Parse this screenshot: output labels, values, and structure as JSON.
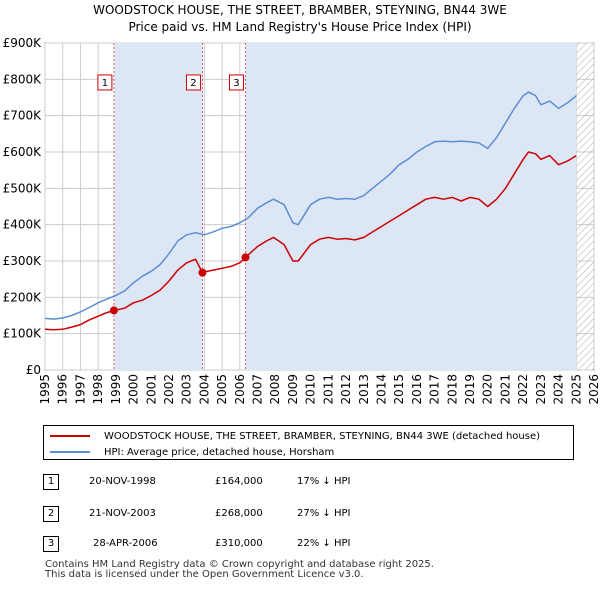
{
  "title_line1": "WOODSTOCK HOUSE, THE STREET, BRAMBER, STEYNING, BN44 3WE",
  "title_line2": "Price paid vs. HM Land Registry's House Price Index (HPI)",
  "colors": {
    "property": "#cc0000",
    "hpi": "#5b8fd4",
    "shade": "#dde6f5",
    "grid": "#cccccc",
    "hatch": "#aaaaaa"
  },
  "chart_data": {
    "type": "line",
    "xlim": [
      1995,
      2026
    ],
    "ylim": [
      0,
      900000
    ],
    "yticks": [
      0,
      100000,
      200000,
      300000,
      400000,
      500000,
      600000,
      700000,
      800000,
      900000
    ],
    "ytick_labels": [
      "£0",
      "£100K",
      "£200K",
      "£300K",
      "£400K",
      "£500K",
      "£600K",
      "£700K",
      "£800K",
      "£900K"
    ],
    "xticks": [
      1995,
      1996,
      1997,
      1998,
      1999,
      2000,
      2001,
      2002,
      2003,
      2004,
      2005,
      2006,
      2007,
      2008,
      2009,
      2010,
      2011,
      2012,
      2013,
      2014,
      2015,
      2016,
      2017,
      2018,
      2019,
      2020,
      2021,
      2022,
      2023,
      2024,
      2025,
      2026
    ],
    "xtick_labels": [
      "1995",
      "1996",
      "1997",
      "1998",
      "1999",
      "2000",
      "2001",
      "2002",
      "2003",
      "2004",
      "2005",
      "2006",
      "2007",
      "2008",
      "2009",
      "2010",
      "2011",
      "2012",
      "2013",
      "2014",
      "2015",
      "2016",
      "2017",
      "2018",
      "2019",
      "2020",
      "2021",
      "2022",
      "2023",
      "2024",
      "2025",
      "2026"
    ],
    "grid": true,
    "hatched_from": 2025.0,
    "series": [
      {
        "name": "WOODSTOCK HOUSE, THE STREET, BRAMBER, STEYNING, BN44 3WE (detached house)",
        "color": "#cc0000",
        "x": [
          1995.0,
          1995.5,
          1996.0,
          1996.5,
          1997.0,
          1997.5,
          1998.0,
          1998.5,
          1998.89,
          1999.5,
          2000.0,
          2000.5,
          2001.0,
          2001.5,
          2002.0,
          2002.5,
          2003.0,
          2003.5,
          2003.89,
          2004.0,
          2004.5,
          2005.0,
          2005.5,
          2006.0,
          2006.32,
          2007.0,
          2007.5,
          2007.9,
          2008.5,
          2009.0,
          2009.3,
          2010.0,
          2010.5,
          2011.0,
          2011.5,
          2012.0,
          2012.5,
          2013.0,
          2013.5,
          2014.0,
          2014.5,
          2015.0,
          2015.5,
          2016.0,
          2016.5,
          2017.0,
          2017.5,
          2018.0,
          2018.5,
          2019.0,
          2019.5,
          2020.0,
          2020.5,
          2021.0,
          2021.5,
          2022.0,
          2022.3,
          2022.7,
          2023.0,
          2023.5,
          2024.0,
          2024.5,
          2025.0
        ],
        "y": [
          112000,
          111000,
          112000,
          118000,
          125000,
          138000,
          148000,
          158000,
          164000,
          170000,
          185000,
          192000,
          205000,
          220000,
          245000,
          275000,
          295000,
          305000,
          268000,
          270000,
          275000,
          280000,
          285000,
          295000,
          310000,
          340000,
          355000,
          365000,
          345000,
          300000,
          300000,
          345000,
          360000,
          365000,
          360000,
          362000,
          358000,
          365000,
          380000,
          395000,
          410000,
          425000,
          440000,
          455000,
          470000,
          475000,
          470000,
          475000,
          465000,
          475000,
          470000,
          450000,
          470000,
          500000,
          540000,
          580000,
          600000,
          595000,
          580000,
          590000,
          565000,
          575000,
          590000
        ]
      },
      {
        "name": "HPI: Average price, detached house, Horsham",
        "color": "#5b8fd4",
        "x": [
          1995.0,
          1995.5,
          1996.0,
          1996.5,
          1997.0,
          1997.5,
          1998.0,
          1998.5,
          1999.0,
          1999.5,
          2000.0,
          2000.5,
          2001.0,
          2001.5,
          2002.0,
          2002.5,
          2003.0,
          2003.5,
          2004.0,
          2004.5,
          2005.0,
          2005.5,
          2006.0,
          2006.5,
          2007.0,
          2007.5,
          2007.9,
          2008.5,
          2009.0,
          2009.3,
          2010.0,
          2010.5,
          2011.0,
          2011.5,
          2012.0,
          2012.5,
          2013.0,
          2013.5,
          2014.0,
          2014.5,
          2015.0,
          2015.5,
          2016.0,
          2016.5,
          2017.0,
          2017.5,
          2018.0,
          2018.5,
          2019.0,
          2019.5,
          2020.0,
          2020.5,
          2021.0,
          2021.5,
          2022.0,
          2022.3,
          2022.7,
          2023.0,
          2023.5,
          2024.0,
          2024.5,
          2025.0
        ],
        "y": [
          142000,
          140000,
          143000,
          150000,
          160000,
          172000,
          185000,
          195000,
          205000,
          218000,
          240000,
          258000,
          272000,
          290000,
          320000,
          355000,
          372000,
          378000,
          372000,
          380000,
          390000,
          395000,
          405000,
          420000,
          445000,
          460000,
          470000,
          455000,
          405000,
          400000,
          455000,
          470000,
          475000,
          470000,
          472000,
          470000,
          480000,
          500000,
          520000,
          540000,
          565000,
          580000,
          600000,
          615000,
          628000,
          630000,
          628000,
          630000,
          628000,
          625000,
          610000,
          640000,
          680000,
          720000,
          755000,
          765000,
          755000,
          730000,
          740000,
          720000,
          735000,
          755000
        ]
      }
    ],
    "annotations": [
      {
        "label": "1",
        "x": 1998.89,
        "y": 164000,
        "box_y": 790000
      },
      {
        "label": "2",
        "x": 2003.89,
        "y": 268000,
        "box_y": 790000
      },
      {
        "label": "3",
        "x": 2006.32,
        "y": 310000,
        "box_y": 790000
      }
    ]
  },
  "legend": {
    "property_label": "WOODSTOCK HOUSE, THE STREET, BRAMBER, STEYNING, BN44 3WE (detached house)",
    "hpi_label": "HPI: Average price, detached house, Horsham"
  },
  "sales": [
    {
      "num": "1",
      "date": "20-NOV-1998",
      "price": "£164,000",
      "hpi": "17% ↓ HPI"
    },
    {
      "num": "2",
      "date": "21-NOV-2003",
      "price": "£268,000",
      "hpi": "27% ↓ HPI"
    },
    {
      "num": "3",
      "date": "28-APR-2006",
      "price": "£310,000",
      "hpi": "22% ↓ HPI"
    }
  ],
  "footer_line1": "Contains HM Land Registry data © Crown copyright and database right 2025.",
  "footer_line2": "This data is licensed under the Open Government Licence v3.0."
}
